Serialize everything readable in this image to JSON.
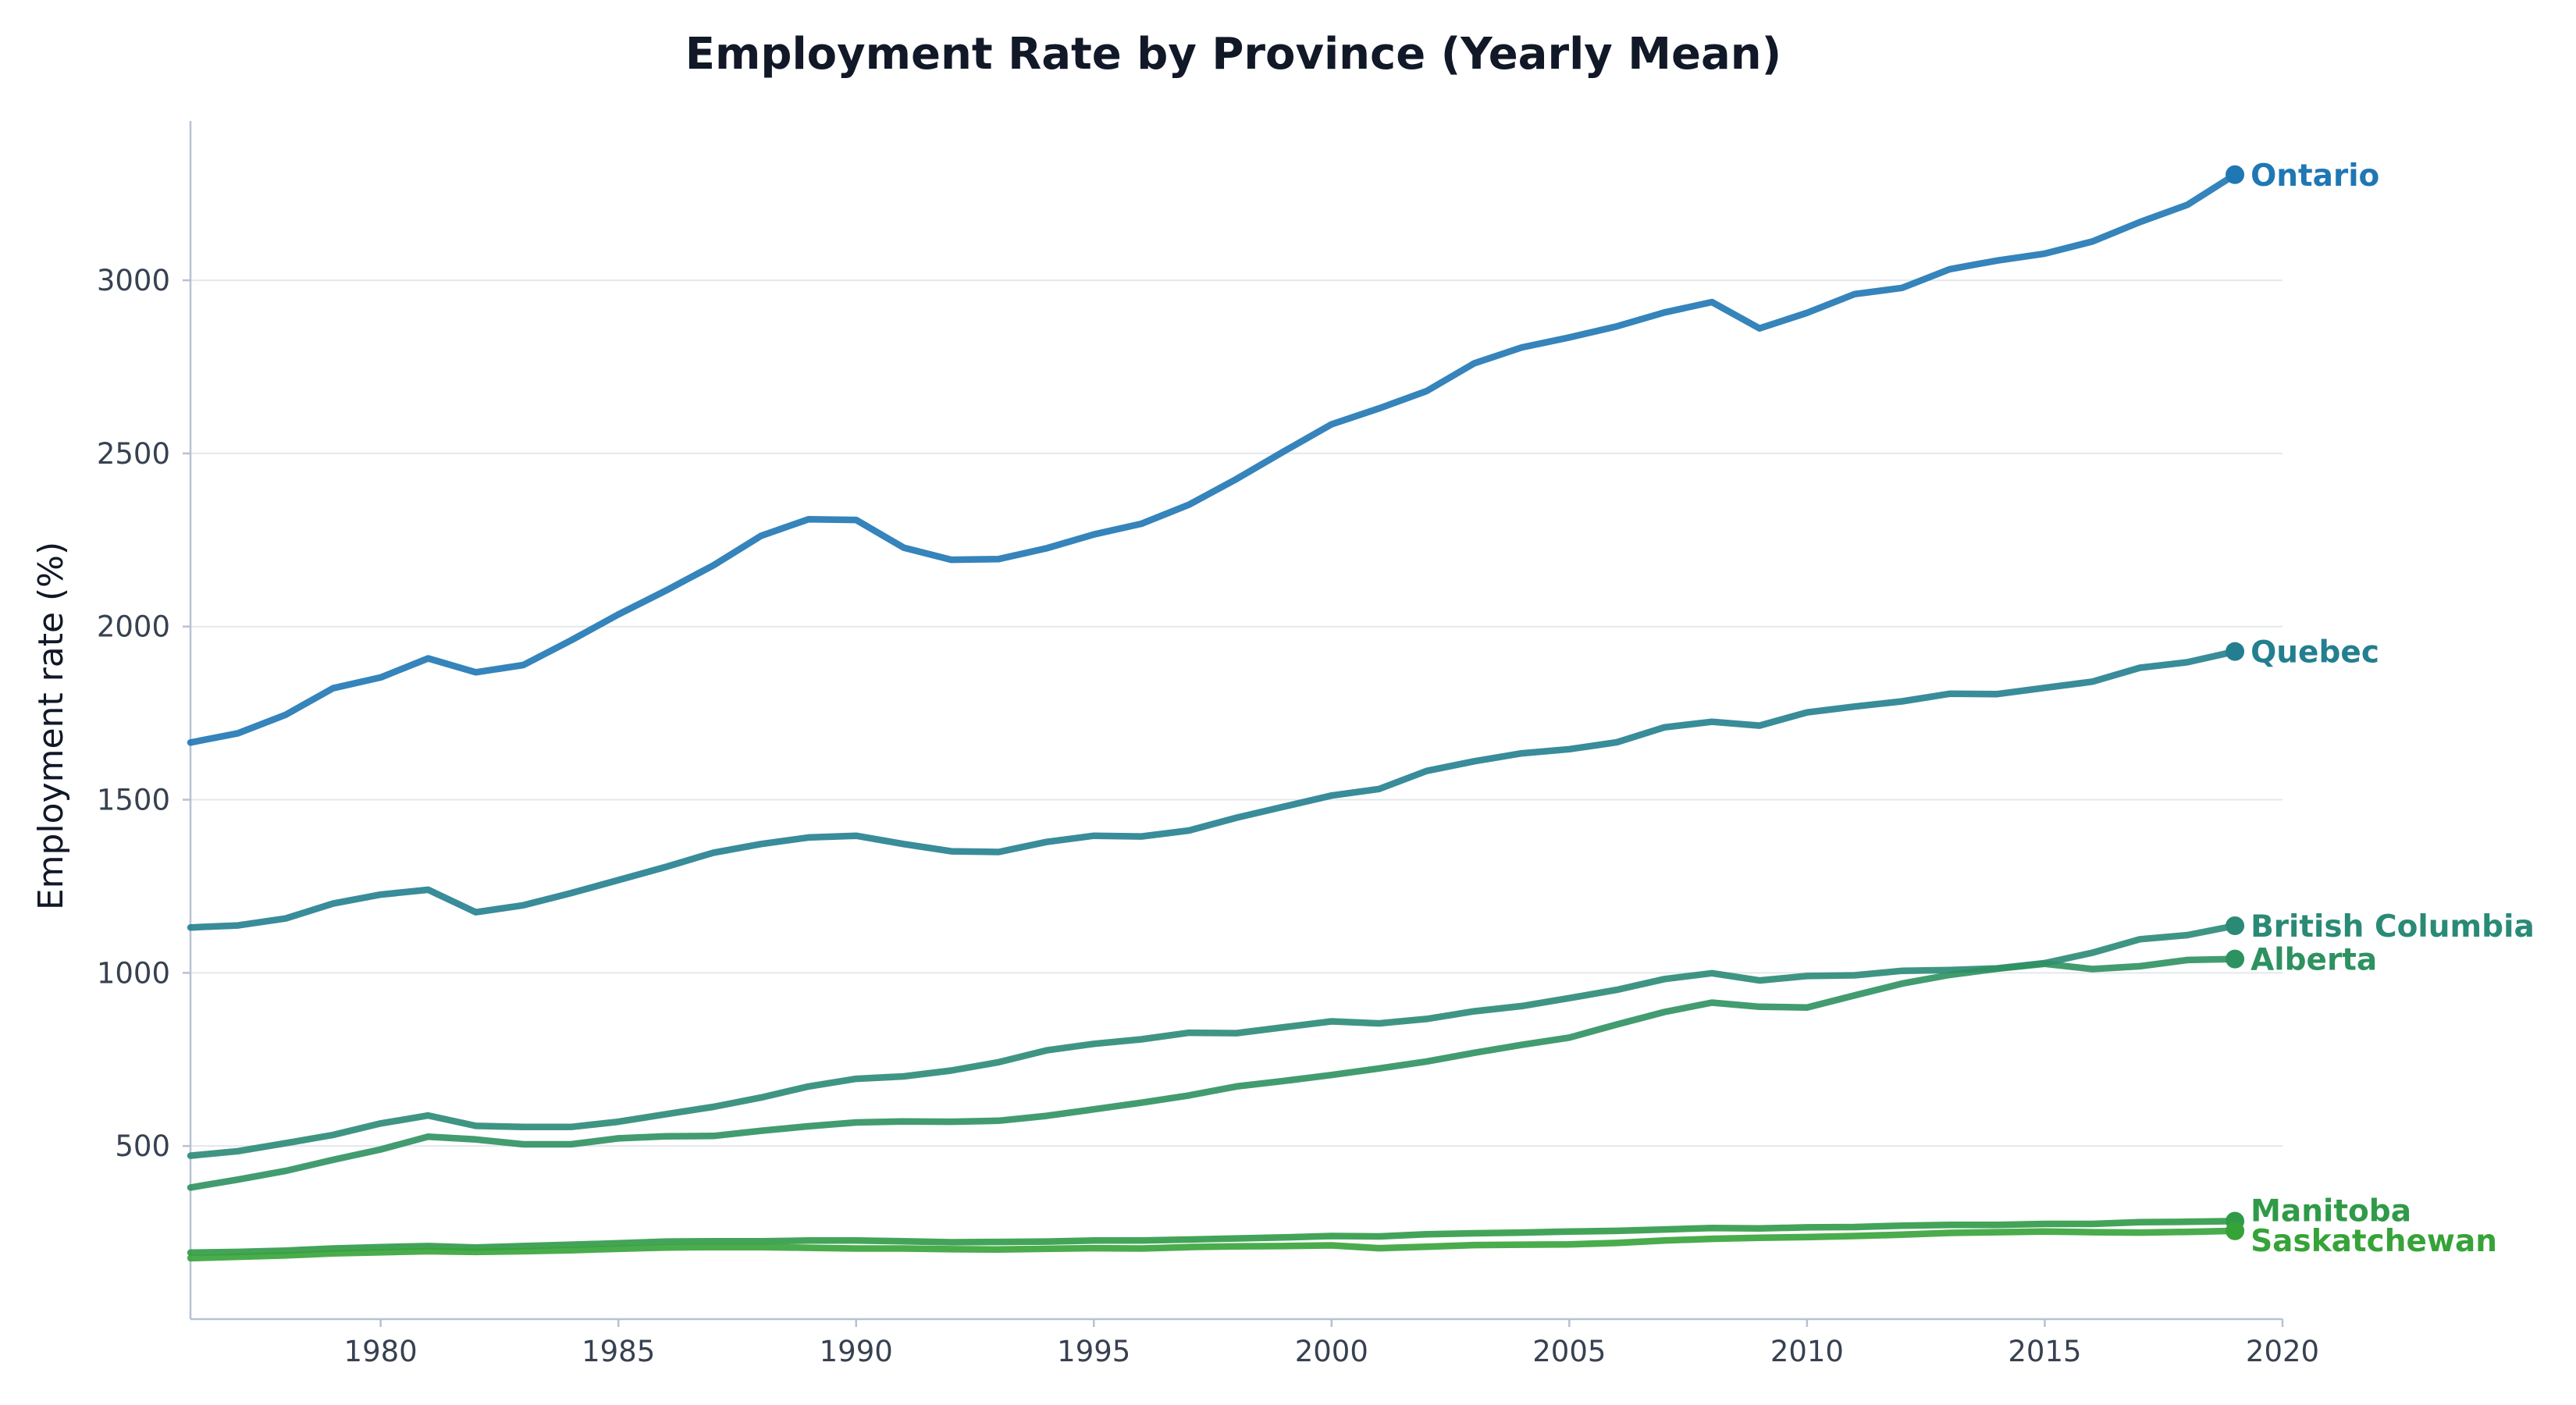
{
  "chart_data": {
    "type": "line",
    "title": "Employment Rate by Province (Yearly Mean)",
    "xlabel": "",
    "ylabel": "Employment rate (%)",
    "xlim": [
      1976,
      2020
    ],
    "ylim": [
      0,
      3460
    ],
    "x_ticks": [
      1980,
      1985,
      1990,
      1995,
      2000,
      2005,
      2010,
      2015,
      2020
    ],
    "y_ticks": [
      500,
      1000,
      1500,
      2000,
      2500,
      3000
    ],
    "grid": true,
    "x": [
      1976,
      1977,
      1978,
      1979,
      1980,
      1981,
      1982,
      1983,
      1984,
      1985,
      1986,
      1987,
      1988,
      1989,
      1990,
      1991,
      1992,
      1993,
      1994,
      1995,
      1996,
      1997,
      1998,
      1999,
      2000,
      2001,
      2002,
      2003,
      2004,
      2005,
      2006,
      2007,
      2008,
      2009,
      2010,
      2011,
      2012,
      2013,
      2014,
      2015,
      2016,
      2017,
      2018,
      2019
    ],
    "series": [
      {
        "name": "Ontario",
        "color": "#1f77b4",
        "values": [
          1665,
          1692,
          1745,
          1822,
          1853,
          1908,
          1868,
          1889,
          1960,
          2035,
          2104,
          2177,
          2262,
          2310,
          2308,
          2228,
          2193,
          2195,
          2226,
          2266,
          2297,
          2352,
          2426,
          2506,
          2584,
          2630,
          2680,
          2760,
          2806,
          2835,
          2867,
          2907,
          2937,
          2861,
          2906,
          2960,
          2978,
          3032,
          3057,
          3077,
          3112,
          3168,
          3218,
          3305
        ]
      },
      {
        "name": "Quebec",
        "color": "#237f8f",
        "values": [
          1131,
          1137,
          1157,
          1200,
          1226,
          1240,
          1175,
          1195,
          1230,
          1268,
          1306,
          1347,
          1372,
          1391,
          1396,
          1372,
          1351,
          1349,
          1378,
          1396,
          1394,
          1411,
          1448,
          1480,
          1512,
          1531,
          1583,
          1611,
          1634,
          1646,
          1666,
          1709,
          1725,
          1714,
          1752,
          1769,
          1784,
          1806,
          1805,
          1823,
          1841,
          1881,
          1897,
          1928
        ]
      },
      {
        "name": "British Columbia",
        "color": "#2a8a76",
        "values": [
          472,
          485,
          508,
          532,
          565,
          588,
          558,
          555,
          555,
          570,
          592,
          613,
          640,
          672,
          694,
          701,
          718,
          742,
          776,
          795,
          808,
          827,
          826,
          843,
          860,
          854,
          867,
          889,
          904,
          927,
          951,
          982,
          999,
          978,
          991,
          993,
          1006,
          1008,
          1013,
          1028,
          1058,
          1097,
          1109,
          1136
        ]
      },
      {
        "name": "Alberta",
        "color": "#2e9160",
        "values": [
          380,
          403,
          428,
          460,
          490,
          527,
          519,
          505,
          505,
          522,
          528,
          529,
          544,
          557,
          568,
          571,
          570,
          573,
          587,
          606,
          625,
          646,
          672,
          688,
          705,
          724,
          744,
          769,
          792,
          813,
          851,
          887,
          914,
          902,
          900,
          935,
          969,
          994,
          1012,
          1026,
          1011,
          1019,
          1037,
          1040
        ]
      },
      {
        "name": "Manitoba",
        "color": "#2f9a47",
        "values": [
          192,
          194,
          198,
          204,
          208,
          211,
          207,
          211,
          215,
          219,
          224,
          225,
          225,
          227,
          227,
          225,
          222,
          223,
          224,
          227,
          227,
          230,
          233,
          236,
          240,
          239,
          245,
          248,
          250,
          253,
          255,
          259,
          263,
          262,
          265,
          266,
          270,
          272,
          272,
          275,
          275,
          280,
          281,
          283
        ]
      },
      {
        "name": "Saskatchewan",
        "color": "#36a338",
        "values": [
          176,
          180,
          184,
          190,
          193,
          196,
          194,
          196,
          199,
          203,
          207,
          208,
          208,
          206,
          204,
          204,
          202,
          201,
          203,
          205,
          204,
          208,
          210,
          211,
          213,
          205,
          209,
          214,
          215,
          216,
          220,
          227,
          232,
          235,
          237,
          240,
          244,
          249,
          251,
          253,
          251,
          250,
          252,
          255
        ]
      }
    ],
    "end_labels": [
      "Ontario",
      "Quebec",
      "British Columbia",
      "Alberta",
      "Manitoba",
      "Saskatchewan"
    ]
  }
}
